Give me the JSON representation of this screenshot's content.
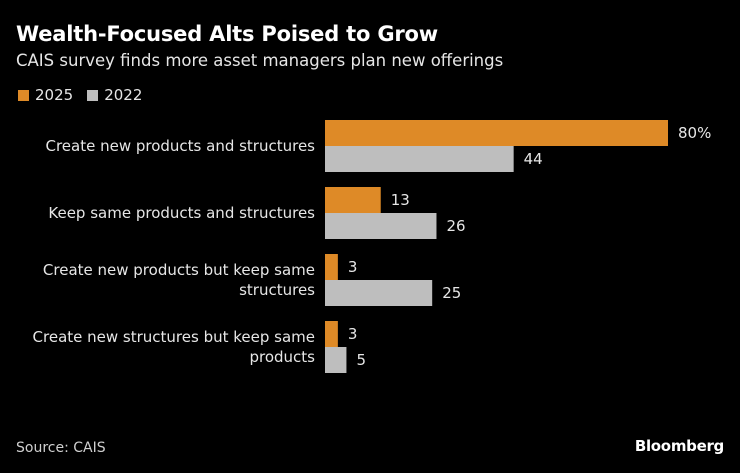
{
  "chart_data": {
    "type": "bar",
    "orientation": "horizontal",
    "title": "Wealth-Focused Alts Poised to Grow",
    "subtitle": "CAIS survey finds more asset managers plan new offerings",
    "categories": [
      [
        "Create new products and structures"
      ],
      [
        "Keep same products and structures"
      ],
      [
        "Create new products but keep same",
        "structures"
      ],
      [
        "Create new structures but keep same",
        "products"
      ]
    ],
    "series": [
      {
        "name": "2025",
        "color": "#de8a27",
        "values": [
          80,
          13,
          3,
          3
        ],
        "labels": [
          "80%",
          "13",
          "3",
          "3"
        ]
      },
      {
        "name": "2022",
        "color": "#bebebe",
        "values": [
          44,
          26,
          25,
          5
        ],
        "labels": [
          "44",
          "26",
          "25",
          "5"
        ]
      }
    ],
    "xlabel": "",
    "ylabel": "",
    "xlim": [
      0,
      80
    ],
    "grid": false,
    "legend_position": "top-left",
    "unit": "%"
  },
  "footer": {
    "source": "Source: CAIS",
    "brand": "Bloomberg"
  }
}
